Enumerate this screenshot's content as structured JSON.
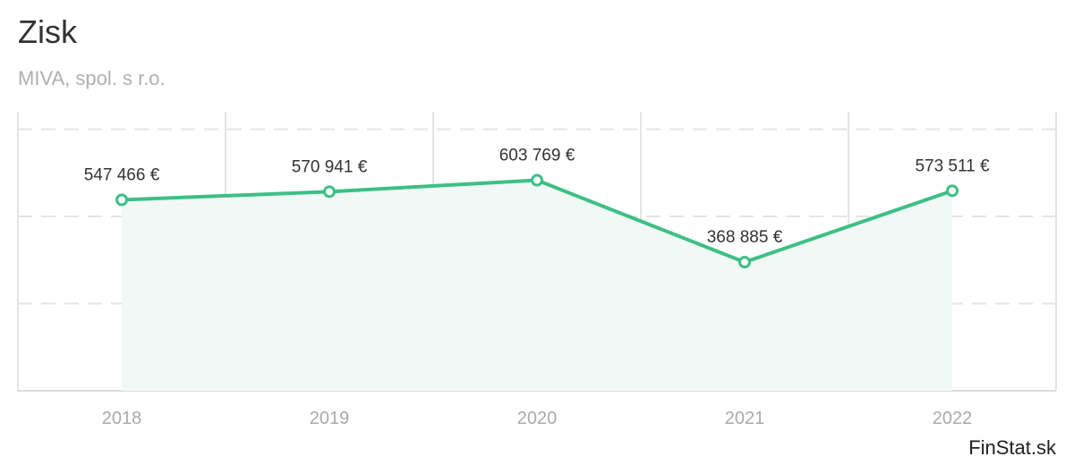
{
  "header": {
    "title": "Zisk",
    "subtitle": "MIVA, spol. s r.o."
  },
  "credit": "FinStat.sk",
  "colors": {
    "line": "#3dbf85",
    "area": "#f0f9f5",
    "grid": "#e4e4e4",
    "label": "#333333",
    "axis_label": "#aaaaaa"
  },
  "chart_data": {
    "type": "line",
    "title": "Zisk",
    "subtitle": "MIVA, spol. s r.o.",
    "categories": [
      "2018",
      "2019",
      "2020",
      "2021",
      "2022"
    ],
    "series": [
      {
        "values": [
          547466,
          570941,
          603769,
          368885,
          573511
        ],
        "labels": [
          "547 466 €",
          "570 941 €",
          "603 769 €",
          "368 885 €",
          "573 511 €"
        ]
      }
    ],
    "ylim": [
      0,
      800000
    ],
    "y_ticks": [
      0,
      250000,
      500000,
      750000
    ],
    "grid": true,
    "area_fill": true,
    "markers": "hollow-circle"
  }
}
